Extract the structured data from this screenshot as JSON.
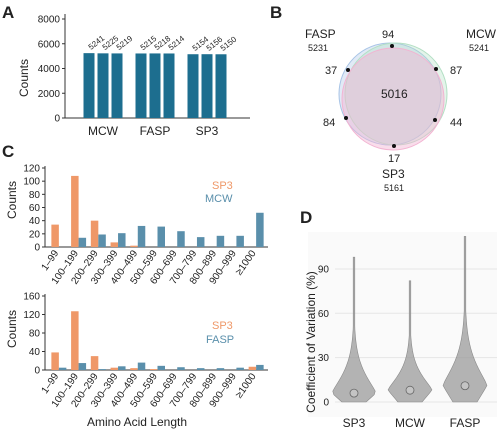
{
  "panels": {
    "a": "A",
    "b": "B",
    "c": "C",
    "d": "D"
  },
  "colors": {
    "mcw": "#1d6e8f",
    "sp3": "#ef9868",
    "mcw_c": "#5a8fab",
    "fasp_c": "#5a8fab",
    "violin": "#9b9b9b"
  },
  "chart_data": [
    {
      "type": "bar",
      "ylabel": "Counts",
      "yticks": [
        "0",
        "2000",
        "4000",
        "6000",
        "8000"
      ],
      "ylim": [
        0,
        8000
      ],
      "groups": [
        "MCW",
        "FASP",
        "SP3"
      ],
      "values": [
        [
          5241,
          5225,
          5219
        ],
        [
          5215,
          5218,
          5214
        ],
        [
          5154,
          5156,
          5150
        ]
      ],
      "value_labels": [
        [
          "5241",
          "5225",
          "5219"
        ],
        [
          "5215",
          "5218",
          "5214"
        ],
        [
          "5154",
          "5156",
          "5150"
        ]
      ]
    },
    {
      "type": "venn",
      "sets": [
        {
          "name": "FASP",
          "total": "5231"
        },
        {
          "name": "MCW",
          "total": "5241"
        },
        {
          "name": "SP3",
          "total": "5161"
        }
      ],
      "center": "5016",
      "regions": {
        "top": "94",
        "left": "37",
        "right": "87",
        "lower_left": "84",
        "lower_right": "44",
        "bottom": "17"
      }
    },
    {
      "type": "bar",
      "ylabel": "Counts",
      "categories": [
        "1–99",
        "100–199",
        "200–299",
        "300–399",
        "400–499",
        "500–599",
        "600–699",
        "700–799",
        "800–899",
        "900–999",
        "≥1000"
      ],
      "yticks": [
        "0",
        "20",
        "40",
        "60",
        "80",
        "100",
        "120"
      ],
      "ylim": [
        0,
        120
      ],
      "legend": [
        "SP3",
        "MCW"
      ],
      "series": [
        {
          "name": "SP3",
          "values": [
            34,
            108,
            40,
            7,
            2,
            0,
            0,
            0,
            0,
            0,
            0
          ]
        },
        {
          "name": "MCW",
          "values": [
            0,
            14,
            19,
            21,
            32,
            31,
            24,
            15,
            17,
            17,
            52
          ]
        }
      ]
    },
    {
      "type": "bar",
      "ylabel": "Counts",
      "xlabel": "Amino Acid Length",
      "categories": [
        "1–99",
        "100–199",
        "200–299",
        "300–399",
        "400–499",
        "500–599",
        "600–699",
        "700–799",
        "800–899",
        "900–999",
        "≥1000"
      ],
      "yticks": [
        "0",
        "40",
        "80",
        "120",
        "160"
      ],
      "ylim": [
        0,
        160
      ],
      "legend": [
        "SP3",
        "FASP"
      ],
      "series": [
        {
          "name": "SP3",
          "values": [
            38,
            127,
            30,
            5,
            4,
            2,
            0,
            0,
            0,
            0,
            7
          ]
        },
        {
          "name": "FASP",
          "values": [
            5,
            15,
            2,
            8,
            16,
            9,
            6,
            4,
            4,
            5,
            11
          ]
        }
      ]
    },
    {
      "type": "violin",
      "ylabel": "Coefficient of Variation (%)",
      "yticks": [
        "0",
        "30",
        "60",
        "90"
      ],
      "ylim": [
        0,
        115
      ],
      "categories": [
        "SP3",
        "MCW",
        "FASP"
      ],
      "medians": [
        6,
        8,
        11
      ],
      "maxima": [
        98,
        82,
        112
      ]
    }
  ]
}
